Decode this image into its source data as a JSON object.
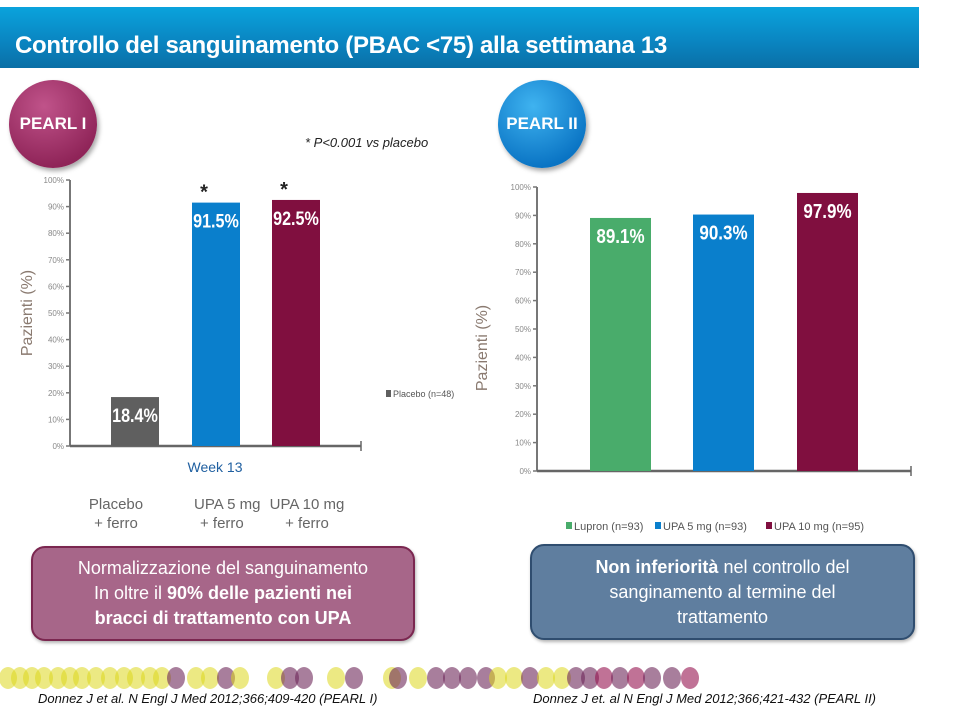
{
  "title": "Controllo del sanguinamento (PBAC <75) alla settimana 13",
  "badges": {
    "pearl1": "PEARL I",
    "pearl2": "PEARL II"
  },
  "p_note": "* P<0.001 vs placebo",
  "categories_pearl1": [
    {
      "line1": "Placebo",
      "line2": "+ ferro"
    },
    {
      "line1": "UPA 5 mg",
      "line2": "+ ferro"
    },
    {
      "line1": "UPA 10 mg",
      "line2": "+ ferro"
    }
  ],
  "box1": {
    "line1": "Normalizzazione del sanguinamento",
    "line2_pre": "In oltre il ",
    "line2_bold": "90% delle pazienti nei",
    "line3_bold": "bracci di trattamento con UPA"
  },
  "box2": {
    "bold": "Non inferiorità",
    "line1_rest": " nel controllo del",
    "line2": "sanginamento al termine del",
    "line3": "trattamento"
  },
  "citations": {
    "left": "Donnez J et al. N Engl J Med 2012;366;409-420 (PEARL I)",
    "right": "Donnez J et. al N Engl J Med 2012;366;421-432 (PEARL II)"
  },
  "chart_data": [
    {
      "type": "bar",
      "title": "",
      "xlabel": "Week 13",
      "ylabel": "Pazienti (%)",
      "ylim": [
        0,
        100
      ],
      "yticks": [
        "0%",
        "10%",
        "20%",
        "30%",
        "40%",
        "50%",
        "60%",
        "70%",
        "80%",
        "90%",
        "100%"
      ],
      "categories": [
        "Placebo + ferro",
        "UPA 5 mg + ferro",
        "UPA 10 mg + ferro"
      ],
      "values": [
        18.4,
        91.5,
        92.5
      ],
      "data_labels": [
        "18.4%",
        "91.5%",
        "92.5%"
      ],
      "significance": [
        "",
        "*",
        "*"
      ],
      "colors": [
        "#5f5f5f",
        "#0a7fcc",
        "#800f3f"
      ],
      "legend": [
        "Placebo (n=48)"
      ],
      "legend_position": "right",
      "grid": false
    },
    {
      "type": "bar",
      "title": "",
      "xlabel": "",
      "ylabel": "Pazienti (%)",
      "ylim": [
        0,
        100
      ],
      "yticks": [
        "0%",
        "10%",
        "20%",
        "30%",
        "40%",
        "50%",
        "60%",
        "70%",
        "80%",
        "90%",
        "100%"
      ],
      "categories": [
        "Lupron (n=93)",
        "UPA 5 mg (n=93)",
        "UPA 10 mg (n=95)"
      ],
      "values": [
        89.1,
        90.3,
        97.9
      ],
      "data_labels": [
        "89.1%",
        "90.3%",
        "97.9%"
      ],
      "colors": [
        "#49ac6b",
        "#0a7fcc",
        "#800f3f"
      ],
      "legend": [
        "Lupron (n=93)",
        "UPA 5 mg (n=93)",
        "UPA 10 mg (n=95)"
      ],
      "legend_position": "bottom",
      "grid": false
    }
  ]
}
